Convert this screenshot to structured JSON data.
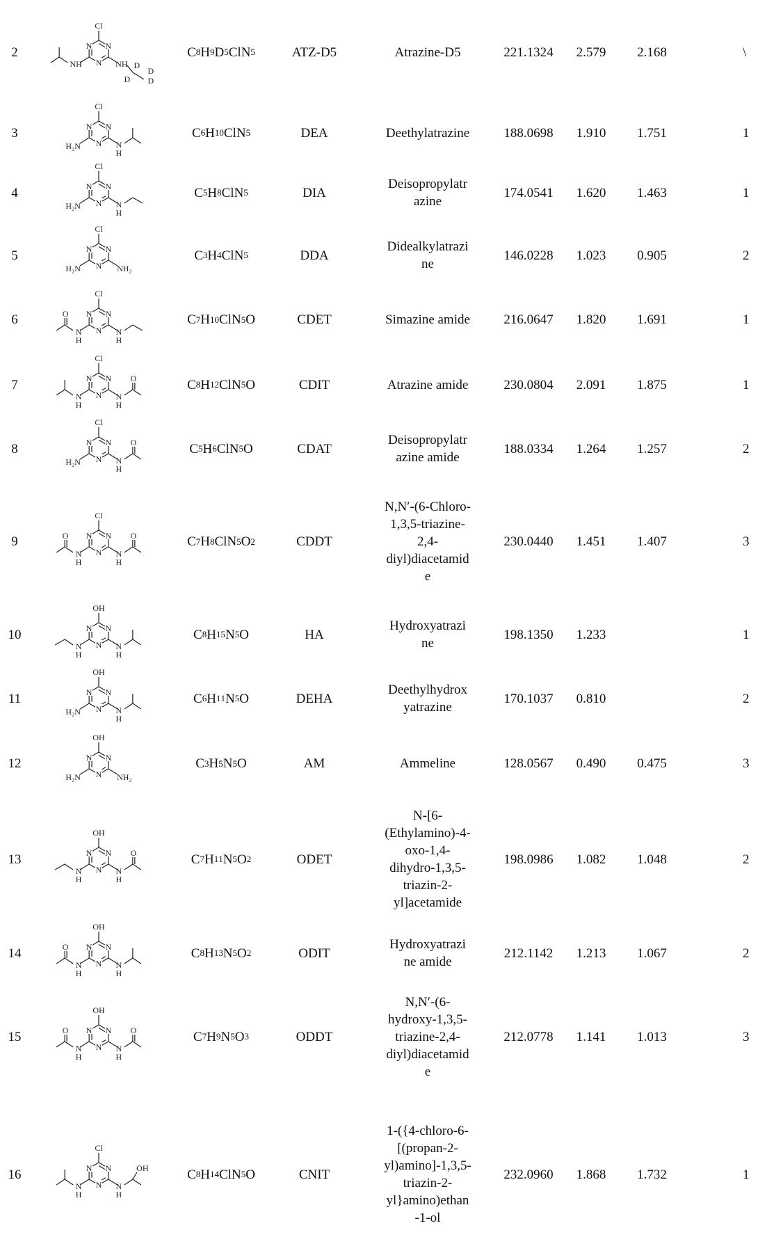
{
  "rows": [
    {
      "no": "2",
      "formula": "C8H9D5ClN5",
      "abbr": "ATZ-D5",
      "name_lines": [
        "Atrazine-D5"
      ],
      "mass": "221.1324",
      "v1": "2.579",
      "v2": "2.168",
      "last": "\\",
      "structure": "atz-d5-structure"
    },
    {
      "no": "3",
      "formula": "C6H10ClN5",
      "abbr": "DEA",
      "name_lines": [
        "Deethylatrazine"
      ],
      "mass": "188.0698",
      "v1": "1.910",
      "v2": "1.751",
      "last": "1",
      "structure": "dea-structure"
    },
    {
      "no": "4",
      "formula": "C5H8ClN5",
      "abbr": "DIA",
      "name_lines": [
        "Deisopropylatr",
        "azine"
      ],
      "mass": "174.0541",
      "v1": "1.620",
      "v2": "1.463",
      "last": "1",
      "structure": "dia-structure"
    },
    {
      "no": "5",
      "formula": "C3H4ClN5",
      "abbr": "DDA",
      "name_lines": [
        "Didealkylatrazi",
        "ne"
      ],
      "mass": "146.0228",
      "v1": "1.023",
      "v2": "0.905",
      "last": "2",
      "structure": "dda-structure"
    },
    {
      "no": "6",
      "formula": "C7H10ClN5O",
      "abbr": "CDET",
      "name_lines": [
        "Simazine amide"
      ],
      "mass": "216.0647",
      "v1": "1.820",
      "v2": "1.691",
      "last": "1",
      "structure": "cdet-structure"
    },
    {
      "no": "7",
      "formula": "C8H12ClN5O",
      "abbr": "CDIT",
      "name_lines": [
        "Atrazine amide"
      ],
      "mass": "230.0804",
      "v1": "2.091",
      "v2": "1.875",
      "last": "1",
      "structure": "cdit-structure"
    },
    {
      "no": "8",
      "formula": "C5H6ClN5O",
      "abbr": "CDAT",
      "name_lines": [
        "Deisopropylatr",
        "azine amide"
      ],
      "mass": "188.0334",
      "v1": "1.264",
      "v2": "1.257",
      "last": "2",
      "structure": "cdat-structure"
    },
    {
      "no": "9",
      "formula": "C7H8ClN5 O2",
      "abbr": "CDDT",
      "name_lines": [
        "N,N′-(6-Chloro-",
        "1,3,5-triazine-",
        "2,4-",
        "diyl)diacetamid",
        "e"
      ],
      "mass": "230.0440",
      "v1": "1.451",
      "v2": "1.407",
      "last": "3",
      "structure": "cddt-structure"
    },
    {
      "no": "10",
      "formula": "C8H15N5O",
      "abbr": "HA",
      "name_lines": [
        "Hydroxyatrazi",
        "ne"
      ],
      "mass": "198.1350",
      "v1": "1.233",
      "v2": "",
      "last": "1",
      "structure": "ha-structure"
    },
    {
      "no": "11",
      "formula": "C6H11N5O",
      "abbr": "DEHA",
      "name_lines": [
        "Deethylhydrox",
        "yatrazine"
      ],
      "mass": "170.1037",
      "v1": "0.810",
      "v2": "",
      "last": "2",
      "structure": "deha-structure"
    },
    {
      "no": "12",
      "formula": "C3H5N5O",
      "abbr": "AM",
      "name_lines": [
        "Ammeline"
      ],
      "mass": "128.0567",
      "v1": "0.490",
      "v2": "0.475",
      "last": "3",
      "structure": "am-structure"
    },
    {
      "no": "13",
      "formula": "C7H11N5O2",
      "abbr": "ODET",
      "name_lines": [
        "N-[6-",
        "(Ethylamino)-4-",
        "oxo-1,4-",
        "dihydro-1,3,5-",
        "triazin-2-",
        "yl]acetamide"
      ],
      "mass": "198.0986",
      "v1": "1.082",
      "v2": "1.048",
      "last": "2",
      "structure": "odet-structure"
    },
    {
      "no": "14",
      "formula": "C8H13N5O2",
      "abbr": "ODIT",
      "name_lines": [
        "Hydroxyatrazi",
        "ne amide"
      ],
      "mass": "212.1142",
      "v1": "1.213",
      "v2": "1.067",
      "last": "2",
      "structure": "odit-structure"
    },
    {
      "no": "15",
      "formula": "C7H9N5O3",
      "abbr": "ODDT",
      "name_lines": [
        "N,N′-(6-",
        "hydroxy-1,3,5-",
        "triazine-2,4-",
        "diyl)diacetamid",
        "e"
      ],
      "mass": "212.0778",
      "v1": "1.141",
      "v2": "1.013",
      "last": "3",
      "structure": "oddt-structure"
    },
    {
      "no": "16",
      "formula": "C8H14ClN5O",
      "abbr": "CNIT",
      "name_lines": [
        "1-({4-chloro-6-",
        "[(propan-2-",
        "yl)amino]-1,3,5-",
        "triazin-2-",
        "yl}amino)ethan",
        "-1-ol"
      ],
      "mass": "232.0960",
      "v1": "1.868",
      "v2": "1.732",
      "last": "1",
      "structure": "cnit-structure"
    }
  ],
  "structures": {
    "top_labels": [
      "Cl",
      "Cl",
      "Cl",
      "Cl",
      "Cl",
      "Cl",
      "Cl",
      "Cl",
      "OH",
      "OH",
      "OH",
      "OH",
      "OH",
      "OH",
      "Cl"
    ],
    "ring_n": "N",
    "nh_label": "NH",
    "n_label": "N",
    "h_label": "H",
    "h2n_label": "H₂N",
    "nh2_label": "NH₂",
    "o_label": "O",
    "oh_label": "OH",
    "d_label": "D"
  }
}
